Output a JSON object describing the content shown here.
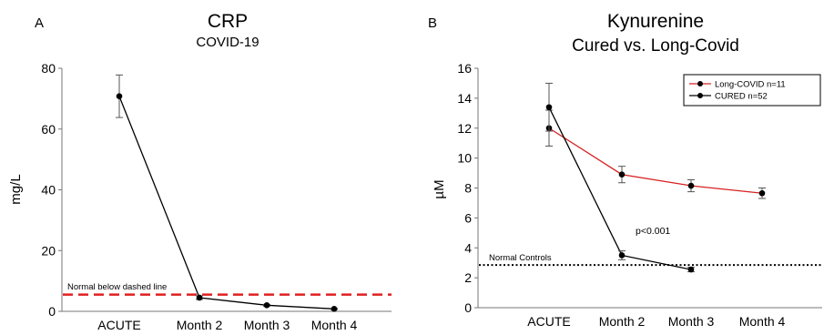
{
  "chart_data": [
    {
      "panel_label": "A",
      "type": "line",
      "title": "CRP",
      "subtitle": "COVID-19",
      "ylabel": "mg/L",
      "xlabel": "",
      "ylim": [
        0,
        80
      ],
      "yticks": [
        0,
        20,
        40,
        60,
        80
      ],
      "categories": [
        "ACUTE",
        "Month 2",
        "Month 3",
        "Month 4"
      ],
      "series": [
        {
          "values": [
            70.8,
            4.5,
            2.0,
            0.8
          ],
          "errors": [
            7.0,
            0.6,
            0.3,
            0.2
          ],
          "color": "#000000"
        }
      ],
      "reference_line": {
        "label": "Normal below dashed line",
        "value": 5.5,
        "color": "#e02020",
        "style": "dashed"
      },
      "grid": false
    },
    {
      "panel_label": "B",
      "type": "line",
      "title": "Kynurenine",
      "subtitle": "Cured vs. Long-Covid",
      "ylabel": "µM",
      "xlabel": "",
      "ylim": [
        0,
        16
      ],
      "yticks": [
        0,
        2,
        4,
        6,
        8,
        10,
        12,
        14,
        16
      ],
      "categories": [
        "ACUTE",
        "Month 2",
        "Month 3",
        "Month 4"
      ],
      "series": [
        {
          "name": "Long-COVID  n=11",
          "values": [
            12.0,
            8.9,
            8.15,
            7.65
          ],
          "errors": [
            1.2,
            0.55,
            0.4,
            0.35
          ],
          "color": "#d62020"
        },
        {
          "name": "CURED n=52",
          "values": [
            13.4,
            3.5,
            2.55,
            null
          ],
          "errors": [
            1.6,
            0.3,
            0.15,
            null
          ],
          "color": "#000000"
        }
      ],
      "reference_line": {
        "label": "Normal Controls",
        "value": 2.85,
        "color": "#000000",
        "style": "dotted"
      },
      "annotations": [
        {
          "text": "p<0.001"
        }
      ],
      "legend": "top-right",
      "grid": false
    }
  ]
}
